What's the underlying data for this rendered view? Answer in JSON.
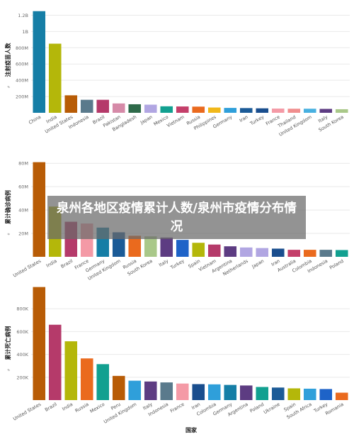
{
  "overlay_title": "泉州各地区疫情累计人数/泉州市疫情分布情况",
  "x_axis_label": "国家",
  "chart_data": [
    {
      "type": "bar",
      "ylabel": "注射疫苗人数",
      "ylabel_small": "#",
      "ylim": [
        0,
        1300000000
      ],
      "yticks": [
        200000000,
        400000000,
        600000000,
        800000000,
        1000000000,
        1200000000
      ],
      "ytick_labels": [
        "200M",
        "400M",
        "600M",
        "800M",
        "1B",
        "1.2B"
      ],
      "categories": [
        "China",
        "India",
        "United States",
        "Indonesia",
        "Brazil",
        "Pakistan",
        "Bangladesh",
        "Japan",
        "Mexico",
        "Vietnam",
        "Russia",
        "Philippines",
        "Germany",
        "Iran",
        "Turkey",
        "France",
        "Thailand",
        "United Kingdom",
        "Italy",
        "South Korea"
      ],
      "values": [
        1250000000,
        850000000,
        215000000,
        160000000,
        160000000,
        115000000,
        105000000,
        100000000,
        80000000,
        78000000,
        76000000,
        65000000,
        60000000,
        58000000,
        55000000,
        52000000,
        50000000,
        50000000,
        48000000,
        44000000
      ],
      "colors": [
        "#157ea6",
        "#b4b70a",
        "#b85c06",
        "#5a7a8c",
        "#b53a6a",
        "#d68aa8",
        "#2e6a4a",
        "#b1a6e2",
        "#12a090",
        "#c43f6a",
        "#ea6a1e",
        "#f1b81a",
        "#2f9fda",
        "#1b5b97",
        "#1a4e8e",
        "#f49aa6",
        "#f08e8e",
        "#48b0e0",
        "#5d3c82",
        "#a9c889"
      ]
    },
    {
      "type": "bar",
      "ylabel": "累计确诊病例",
      "ylabel_small": "#",
      "ylim": [
        0,
        85000000
      ],
      "yticks": [
        20000000,
        40000000,
        60000000,
        80000000
      ],
      "ytick_labels": [
        "20M",
        "40M",
        "60M",
        "80M"
      ],
      "categories": [
        "United States",
        "India",
        "Brazil",
        "France",
        "Germany",
        "United Kingdom",
        "Russia",
        "South Korea",
        "Italy",
        "Turkey",
        "Spain",
        "Vietnam",
        "Argentina",
        "Netherlands",
        "Japan",
        "Iran",
        "Australia",
        "Colombia",
        "Indonesia",
        "Poland"
      ],
      "values": [
        81000000,
        43000000,
        30000000,
        28500000,
        25000000,
        21000000,
        18000000,
        17500000,
        16500000,
        14500000,
        12000000,
        10500000,
        9000000,
        8000000,
        7500000,
        7000000,
        6000000,
        6000000,
        6000000,
        5800000
      ],
      "colors": [
        "#b85c06",
        "#b4b70a",
        "#b53a6a",
        "#f49aa6",
        "#157ea6",
        "#1b5b97",
        "#ea6a1e",
        "#a9c889",
        "#5d3c82",
        "#1e63c8",
        "#b4b70a",
        "#b53a6a",
        "#5d3c82",
        "#b1a6e2",
        "#b1a6e2",
        "#1a4e8e",
        "#c43f6a",
        "#ea6a1e",
        "#5a7a8c",
        "#12a090"
      ]
    },
    {
      "type": "bar",
      "ylabel": "累计死亡病例",
      "ylabel_small": "#",
      "ylim": [
        0,
        1000000
      ],
      "yticks": [
        200000,
        400000,
        600000,
        800000
      ],
      "ytick_labels": [
        "200K",
        "400K",
        "600K",
        "800K"
      ],
      "categories": [
        "United States",
        "Brazil",
        "India",
        "Russia",
        "Mexico",
        "Peru",
        "United Kingdom",
        "Italy",
        "Indonesia",
        "France",
        "Iran",
        "Colombia",
        "Germany",
        "Argentina",
        "Poland",
        "Ukraine",
        "Spain",
        "South Africa",
        "Turkey",
        "Romania"
      ],
      "values": [
        990000,
        660000,
        515000,
        365000,
        315000,
        212000,
        170000,
        163000,
        155000,
        145000,
        140000,
        138000,
        133000,
        128000,
        115000,
        110000,
        103000,
        100000,
        97000,
        65000
      ],
      "colors": [
        "#b85c06",
        "#b53a6a",
        "#b4b70a",
        "#ea6a1e",
        "#12a090",
        "#b85c06",
        "#2f9fda",
        "#5d3c82",
        "#5a7a8c",
        "#f49aa6",
        "#1a4e8e",
        "#2f9fda",
        "#157ea6",
        "#5d3c82",
        "#12a090",
        "#1b5b97",
        "#b4b70a",
        "#2f9fda",
        "#1e63c8",
        "#ea6a1e"
      ]
    }
  ]
}
